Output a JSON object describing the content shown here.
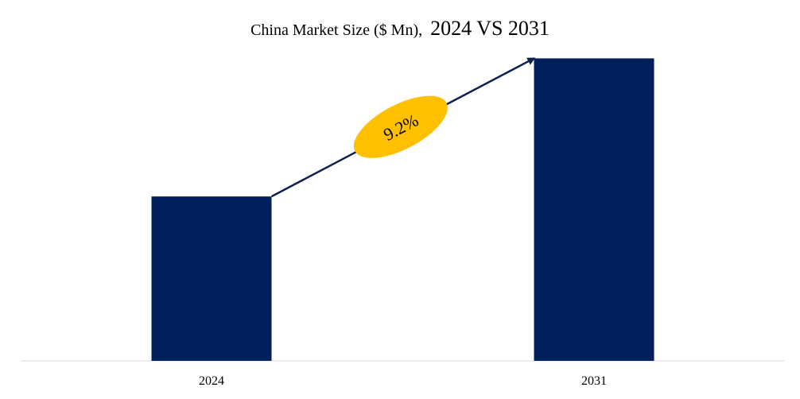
{
  "chart_data": {
    "type": "bar",
    "title_main": "China Market Size ($ Mn),",
    "title_years": "2024 VS 2031",
    "categories": [
      "2024",
      "2031"
    ],
    "values": [
      1,
      1.84
    ],
    "ylim": [
      0,
      2.05
    ],
    "xlabel": "",
    "ylabel": "",
    "grid": false,
    "annotation": {
      "label": "9.2%",
      "kind": "CAGR arrow"
    },
    "colors": {
      "bar": "#001F5B",
      "arrow": "#0D1F4F",
      "badge": "#FFC000",
      "axis": "#D9D9D9"
    }
  }
}
